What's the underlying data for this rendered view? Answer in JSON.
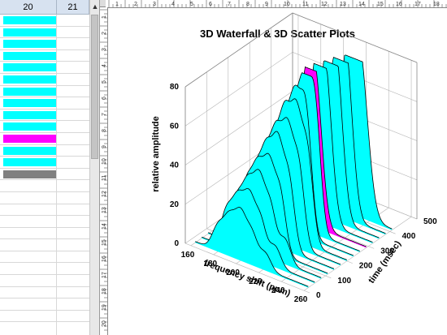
{
  "sheet": {
    "col_headers": [
      "20",
      "21"
    ],
    "scroll_arrow": "▲",
    "rows": [
      {
        "fill": "#00ffff"
      },
      {
        "fill": "#00ffff"
      },
      {
        "fill": "#00ffff"
      },
      {
        "fill": "#00ffff"
      },
      {
        "fill": "#00ffff"
      },
      {
        "fill": "#00ffff"
      },
      {
        "fill": "#00ffff"
      },
      {
        "fill": "#00ffff"
      },
      {
        "fill": "#00ffff"
      },
      {
        "fill": "#00ffff"
      },
      {
        "fill": "#ff00ff"
      },
      {
        "fill": "#00ffff"
      },
      {
        "fill": "#00ffff"
      },
      {
        "fill": "#808080"
      },
      {
        "fill": ""
      },
      {
        "fill": ""
      },
      {
        "fill": ""
      },
      {
        "fill": ""
      },
      {
        "fill": ""
      },
      {
        "fill": ""
      },
      {
        "fill": ""
      },
      {
        "fill": ""
      },
      {
        "fill": ""
      },
      {
        "fill": ""
      },
      {
        "fill": ""
      },
      {
        "fill": ""
      }
    ]
  },
  "rulers": {
    "h_labels": [
      "1",
      "2",
      "3",
      "4",
      "5",
      "6",
      "7",
      "8",
      "9",
      "10",
      "11",
      "12",
      "13",
      "14",
      "15",
      "16",
      "17",
      "18"
    ],
    "v_labels": [
      "1",
      "2",
      "3",
      "4",
      "5",
      "6",
      "7",
      "8",
      "9",
      "10",
      "11",
      "12",
      "13",
      "14",
      "15",
      "16",
      "17",
      "18",
      "19",
      "20"
    ]
  },
  "graph": {
    "title": "3D Waterfall & 3D Scatter Plots",
    "colors": {
      "main": "#00ffff",
      "highlight": "#ff00ff",
      "line": "#000000",
      "grid": "#b4b4b4"
    }
  },
  "chart_data": {
    "type": "3d-waterfall",
    "title": "3D Waterfall & 3D Scatter Plots",
    "xlabel": "frequency shift (ppm)",
    "ylabel": "time (msec)",
    "zlabel": "relative amplitude",
    "x_ticks": [
      "160",
      "180",
      "200",
      "220",
      "240",
      "260"
    ],
    "y_ticks": [
      "0",
      "100",
      "200",
      "300",
      "400",
      "500"
    ],
    "z_ticks": [
      "0",
      "20",
      "40",
      "60",
      "80"
    ],
    "xlim": [
      155,
      265
    ],
    "ylim": [
      0,
      500
    ],
    "zlim": [
      0,
      80
    ],
    "highlight_time": 300,
    "series": [
      {
        "time": 20,
        "peaks": [
          [
            180,
            12,
            5
          ],
          [
            190,
            18,
            5
          ],
          [
            200,
            22,
            5
          ],
          [
            210,
            15,
            5
          ],
          [
            222,
            8,
            5
          ]
        ]
      },
      {
        "time": 50,
        "peaks": [
          [
            182,
            18,
            5
          ],
          [
            192,
            25,
            5
          ],
          [
            202,
            28,
            5
          ],
          [
            212,
            20,
            5
          ],
          [
            225,
            10,
            5
          ]
        ]
      },
      {
        "time": 80,
        "peaks": [
          [
            185,
            22,
            5
          ],
          [
            195,
            30,
            5
          ],
          [
            205,
            35,
            5
          ],
          [
            215,
            25,
            5
          ],
          [
            228,
            12,
            5
          ]
        ]
      },
      {
        "time": 110,
        "peaks": [
          [
            188,
            28,
            5
          ],
          [
            198,
            36,
            5
          ],
          [
            208,
            40,
            5
          ],
          [
            218,
            30,
            5
          ]
        ]
      },
      {
        "time": 140,
        "peaks": [
          [
            190,
            32,
            5
          ],
          [
            200,
            42,
            5
          ],
          [
            210,
            48,
            5
          ],
          [
            220,
            35,
            5
          ]
        ]
      },
      {
        "time": 170,
        "peaks": [
          [
            193,
            38,
            5
          ],
          [
            203,
            48,
            5
          ],
          [
            213,
            52,
            5
          ],
          [
            223,
            40,
            5
          ]
        ]
      },
      {
        "time": 200,
        "peaks": [
          [
            195,
            42,
            5
          ],
          [
            205,
            55,
            5
          ],
          [
            215,
            58,
            5
          ],
          [
            225,
            45,
            5
          ]
        ]
      },
      {
        "time": 230,
        "peaks": [
          [
            198,
            48,
            5
          ],
          [
            208,
            60,
            5
          ],
          [
            218,
            62,
            5
          ]
        ]
      },
      {
        "time": 260,
        "peaks": [
          [
            200,
            52,
            5
          ],
          [
            210,
            65,
            5
          ],
          [
            220,
            66,
            5
          ]
        ]
      },
      {
        "time": 290,
        "peaks": [
          [
            205,
            58,
            6
          ],
          [
            215,
            70,
            6
          ]
        ]
      },
      {
        "time": 320,
        "peaks": [
          [
            208,
            62,
            6
          ],
          [
            218,
            72,
            6
          ]
        ]
      },
      {
        "time": 350,
        "peaks": [
          [
            212,
            66,
            6
          ],
          [
            222,
            74,
            6
          ]
        ]
      },
      {
        "time": 380,
        "peaks": [
          [
            215,
            70,
            6
          ],
          [
            225,
            75,
            6
          ]
        ]
      },
      {
        "time": 410,
        "peaks": [
          [
            220,
            72,
            7
          ],
          [
            232,
            73,
            7
          ]
        ]
      }
    ]
  }
}
